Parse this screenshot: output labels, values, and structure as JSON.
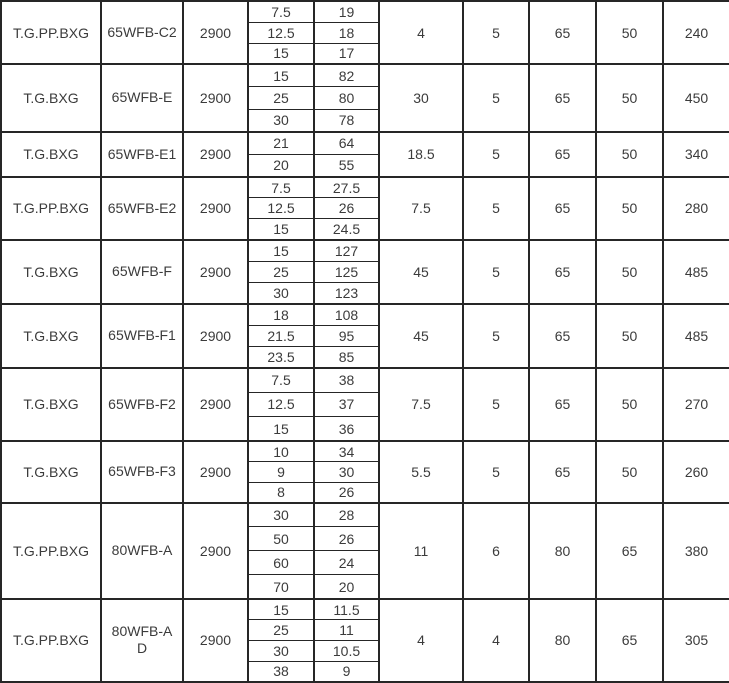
{
  "table": {
    "groups": [
      {
        "material": "T.G.PP.BXG",
        "model": "65WFB-C2",
        "speed": "2900",
        "points": [
          [
            "7.5",
            "19"
          ],
          [
            "12.5",
            "18"
          ],
          [
            "15",
            "17"
          ]
        ],
        "power": "4",
        "suction": "5",
        "inlet": "65",
        "outlet": "50",
        "weight": "240"
      },
      {
        "material": "T.G.BXG",
        "model": "65WFB-E",
        "speed": "2900",
        "points": [
          [
            "15",
            "82"
          ],
          [
            "25",
            "80"
          ],
          [
            "30",
            "78"
          ]
        ],
        "power": "30",
        "suction": "5",
        "inlet": "65",
        "outlet": "50",
        "weight": "450"
      },
      {
        "material": "T.G.BXG",
        "model": "65WFB-E1",
        "speed": "2900",
        "points": [
          [
            "21",
            "64"
          ],
          [
            "20",
            "55"
          ]
        ],
        "power": "18.5",
        "suction": "5",
        "inlet": "65",
        "outlet": "50",
        "weight": "340"
      },
      {
        "material": "T.G.PP.BXG",
        "model": "65WFB-E2",
        "speed": "2900",
        "points": [
          [
            "7.5",
            "27.5"
          ],
          [
            "12.5",
            "26"
          ],
          [
            "15",
            "24.5"
          ]
        ],
        "power": "7.5",
        "suction": "5",
        "inlet": "65",
        "outlet": "50",
        "weight": "280"
      },
      {
        "material": "T.G.BXG",
        "model": "65WFB-F",
        "speed": "2900",
        "points": [
          [
            "15",
            "127"
          ],
          [
            "25",
            "125"
          ],
          [
            "30",
            "123"
          ]
        ],
        "power": "45",
        "suction": "5",
        "inlet": "65",
        "outlet": "50",
        "weight": "485"
      },
      {
        "material": "T.G.BXG",
        "model": "65WFB-F1",
        "speed": "2900",
        "points": [
          [
            "18",
            "108"
          ],
          [
            "21.5",
            "95"
          ],
          [
            "23.5",
            "85"
          ]
        ],
        "power": "45",
        "suction": "5",
        "inlet": "65",
        "outlet": "50",
        "weight": "485"
      },
      {
        "material": "T.G.BXG",
        "model": "65WFB-F2",
        "speed": "2900",
        "points": [
          [
            "7.5",
            "38"
          ],
          [
            "12.5",
            "37"
          ],
          [
            "15",
            "36"
          ]
        ],
        "power": "7.5",
        "suction": "5",
        "inlet": "65",
        "outlet": "50",
        "weight": "270"
      },
      {
        "material": "T.G.BXG",
        "model": "65WFB-F3",
        "speed": "2900",
        "points": [
          [
            "10",
            "34"
          ],
          [
            "9",
            "30"
          ],
          [
            "8",
            "26"
          ]
        ],
        "power": "5.5",
        "suction": "5",
        "inlet": "65",
        "outlet": "50",
        "weight": "260"
      },
      {
        "material": "T.G.PP.BXG",
        "model": "80WFB-A",
        "speed": "2900",
        "points": [
          [
            "30",
            "28"
          ],
          [
            "50",
            "26"
          ],
          [
            "60",
            "24"
          ],
          [
            "70",
            "20"
          ]
        ],
        "power": "11",
        "suction": "6",
        "inlet": "80",
        "outlet": "65",
        "weight": "380"
      },
      {
        "material": "T.G.PP.BXG",
        "model": "80WFB-A\nD",
        "speed": "2900",
        "points": [
          [
            "15",
            "11.5"
          ],
          [
            "25",
            "11"
          ],
          [
            "30",
            "10.5"
          ],
          [
            "38",
            "9"
          ]
        ],
        "power": "4",
        "suction": "4",
        "inlet": "80",
        "outlet": "65",
        "weight": "305"
      }
    ]
  },
  "colors": {
    "background": "#ffffff",
    "border": "#262626",
    "text": "#3b3b3b"
  }
}
